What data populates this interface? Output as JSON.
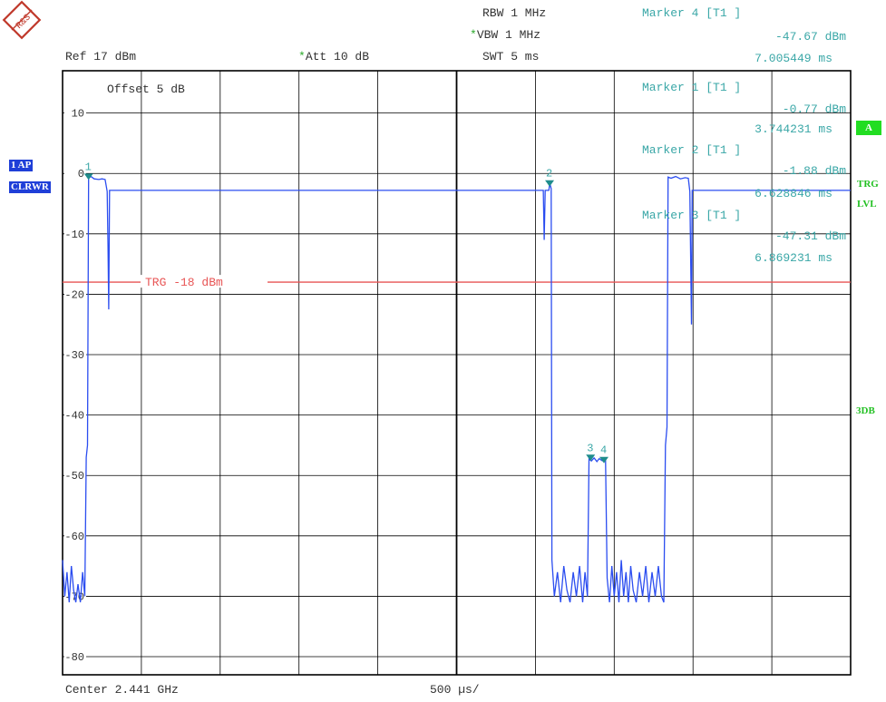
{
  "header": {
    "ref": "Ref  17 dBm",
    "att": "Att  10 dB",
    "att_star": "*",
    "rbw": "RBW 1 MHz",
    "vbw": "VBW 1 MHz",
    "vbw_star": "*",
    "swt": "SWT 5 ms"
  },
  "offset": "Offset  5 dB",
  "markers_readout": [
    {
      "title": "Marker 4 [T1 ]",
      "level": "-47.67 dBm",
      "time": "7.005449 ms"
    },
    {
      "title": "Marker 1 [T1 ]",
      "level": "-0.77 dBm",
      "time": "3.744231 ms"
    },
    {
      "title": "Marker 2 [T1 ]",
      "level": "-1.88 dBm",
      "time": "6.628846 ms"
    },
    {
      "title": "Marker 3 [T1 ]",
      "level": "-47.31 dBm",
      "time": "6.869231 ms"
    }
  ],
  "side": {
    "ap": "1 AP",
    "clrwr": "CLRWR",
    "a": "A",
    "trg": "TRG",
    "lvl": "LVL",
    "db3": "3DB"
  },
  "footer": {
    "center": "Center 2.441 GHz",
    "div": "500 µs/"
  },
  "logo_text": "R&S",
  "colors": {
    "trace": "#2b4df0",
    "trigger": "#e85555",
    "marker": "#1e8c8c",
    "readout": "#3aa7a7",
    "grid": "#000000"
  },
  "chart_data": {
    "type": "line",
    "ylim": [
      -83,
      17
    ],
    "y_ticks": [
      10,
      0,
      -10,
      -20,
      -30,
      -40,
      -50,
      -60,
      -70,
      -80
    ],
    "y_tick_labels": [
      "10",
      "0",
      "-10",
      "-20",
      "-30",
      "-40",
      "-50",
      "-60",
      "-70",
      "-80"
    ],
    "x_divisions": 10,
    "x_units": "µs",
    "x_range": [
      0,
      5000
    ],
    "trigger_level": {
      "value": -18,
      "label": "TRG -18 dBm"
    },
    "series": [
      {
        "points": [
          [
            0,
            -64
          ],
          [
            14,
            -70
          ],
          [
            28,
            -66
          ],
          [
            42,
            -71
          ],
          [
            56,
            -65
          ],
          [
            70,
            -69
          ],
          [
            84,
            -71
          ],
          [
            98,
            -68
          ],
          [
            113,
            -71
          ],
          [
            127,
            -66
          ],
          [
            141,
            -70
          ],
          [
            150,
            -47
          ],
          [
            158,
            -45
          ],
          [
            165,
            -0.77
          ],
          [
            180,
            -0.5
          ],
          [
            200,
            -0.9
          ],
          [
            230,
            -1.0
          ],
          [
            250,
            -0.9
          ],
          [
            270,
            -1.0
          ],
          [
            283,
            -3
          ],
          [
            288,
            -12
          ],
          [
            293,
            -22.5
          ],
          [
            298,
            -2.8
          ],
          [
            420,
            -2.8
          ],
          [
            800,
            -2.8
          ],
          [
            1400,
            -2.8
          ],
          [
            2000,
            -2.8
          ],
          [
            2500,
            -2.8
          ],
          [
            3050,
            -2.8
          ],
          [
            3056,
            -11
          ],
          [
            3062,
            -2.8
          ],
          [
            3085,
            -2.8
          ],
          [
            3090,
            -1.88
          ],
          [
            3095,
            -2.0
          ],
          [
            3100,
            -2.5
          ],
          [
            3105,
            -64
          ],
          [
            3120,
            -70
          ],
          [
            3140,
            -66
          ],
          [
            3160,
            -71
          ],
          [
            3180,
            -65
          ],
          [
            3200,
            -69
          ],
          [
            3220,
            -71
          ],
          [
            3240,
            -66
          ],
          [
            3260,
            -70
          ],
          [
            3280,
            -65
          ],
          [
            3300,
            -71
          ],
          [
            3315,
            -66
          ],
          [
            3330,
            -70
          ],
          [
            3340,
            -47.3
          ],
          [
            3355,
            -47.6
          ],
          [
            3372,
            -47.1
          ],
          [
            3390,
            -47.7
          ],
          [
            3405,
            -47.2
          ],
          [
            3420,
            -47.5
          ],
          [
            3435,
            -47.67
          ],
          [
            3445,
            -47.0
          ],
          [
            3455,
            -67
          ],
          [
            3470,
            -71
          ],
          [
            3485,
            -65
          ],
          [
            3500,
            -70
          ],
          [
            3515,
            -66
          ],
          [
            3530,
            -71
          ],
          [
            3545,
            -64
          ],
          [
            3560,
            -70
          ],
          [
            3575,
            -66
          ],
          [
            3590,
            -71
          ],
          [
            3605,
            -65
          ],
          [
            3620,
            -69
          ],
          [
            3640,
            -71
          ],
          [
            3660,
            -66
          ],
          [
            3680,
            -70
          ],
          [
            3700,
            -65
          ],
          [
            3720,
            -71
          ],
          [
            3740,
            -66
          ],
          [
            3760,
            -70
          ],
          [
            3780,
            -65
          ],
          [
            3800,
            -70
          ],
          [
            3815,
            -71
          ],
          [
            3825,
            -45
          ],
          [
            3835,
            -42
          ],
          [
            3842,
            -0.6
          ],
          [
            3860,
            -0.8
          ],
          [
            3890,
            -0.5
          ],
          [
            3920,
            -0.9
          ],
          [
            3950,
            -0.7
          ],
          [
            3970,
            -0.8
          ],
          [
            3980,
            -3
          ],
          [
            3985,
            -14
          ],
          [
            3990,
            -25
          ],
          [
            3995,
            -2.8
          ],
          [
            4200,
            -2.8
          ],
          [
            4600,
            -2.8
          ],
          [
            5000,
            -2.8
          ]
        ]
      }
    ],
    "markers": [
      {
        "label": "1",
        "x": 165,
        "y": -0.77
      },
      {
        "label": "2",
        "x": 3090,
        "y": -1.88
      },
      {
        "label": "3",
        "x": 3350,
        "y": -47.31
      },
      {
        "label": "4",
        "x": 3435,
        "y": -47.67
      }
    ]
  }
}
